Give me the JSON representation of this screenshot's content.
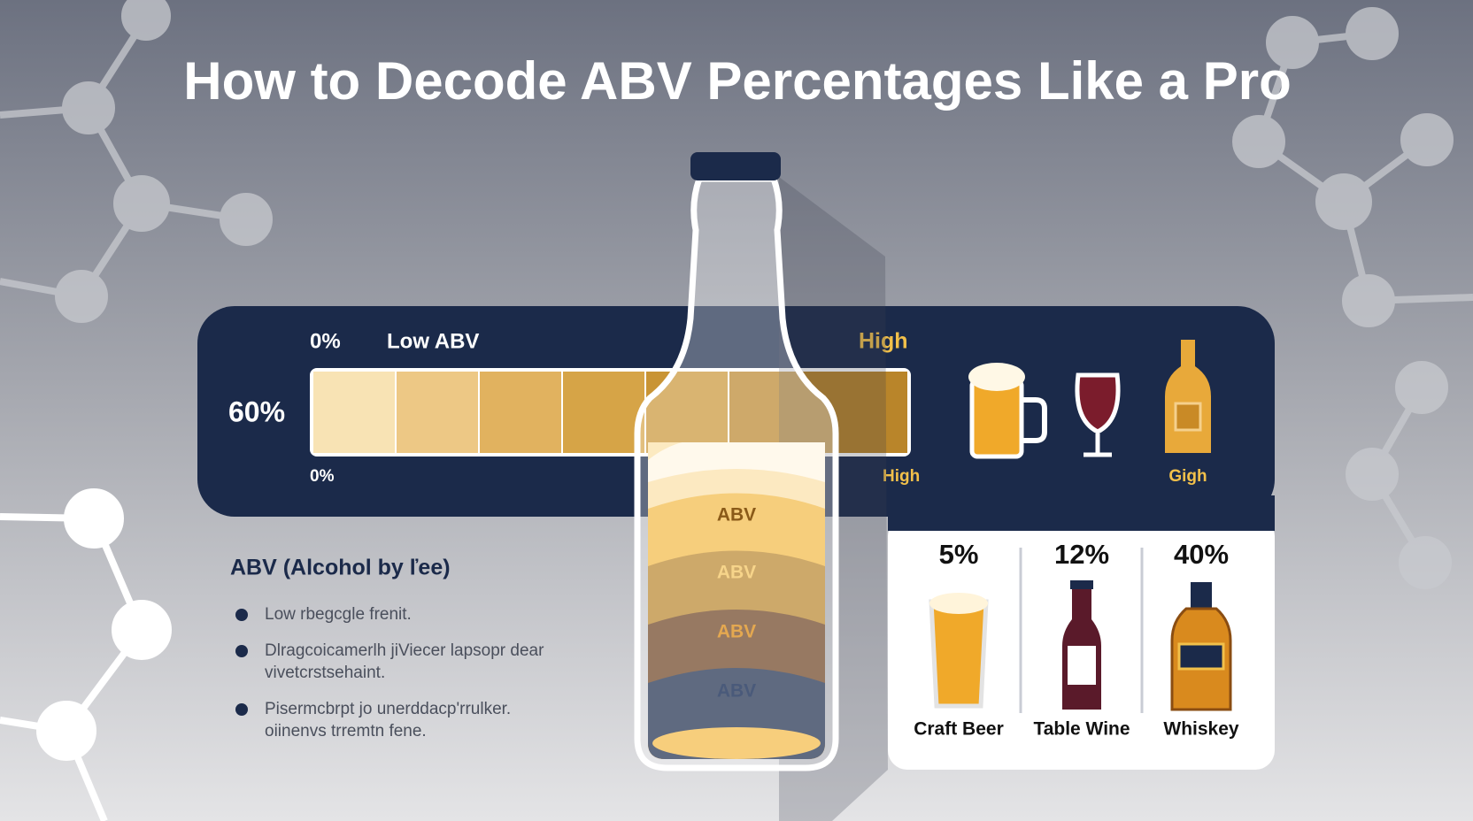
{
  "header": {
    "title": "How to Decode ABV Percentages Like a Pro"
  },
  "scale": {
    "top_left": "0%",
    "top_low": "Low ABV",
    "top_high": "High",
    "side": "60%",
    "bottom_left": "0%",
    "bottom_high": "High",
    "icon_label": "Gigh"
  },
  "bottle": {
    "bands": [
      "ABV",
      "ABV",
      "ABV",
      "ABV"
    ]
  },
  "info": {
    "heading": "ABV (Alcohol by ľee)",
    "bullets": [
      [
        "Low rbegcgle frenit."
      ],
      [
        "Dlragcoicamerlh jiViecer lapsopr dear",
        "vivetcrstsehaint."
      ],
      [
        "Pisermcbrpt jo unerddacp'rrulker.",
        "oiinenvs trremtn fene."
      ]
    ]
  },
  "drinks": [
    {
      "percent": "5%",
      "name": "Craft Beer"
    },
    {
      "percent": "12%",
      "name": "Table Wine"
    },
    {
      "percent": "40%",
      "name": "Whiskey"
    }
  ]
}
